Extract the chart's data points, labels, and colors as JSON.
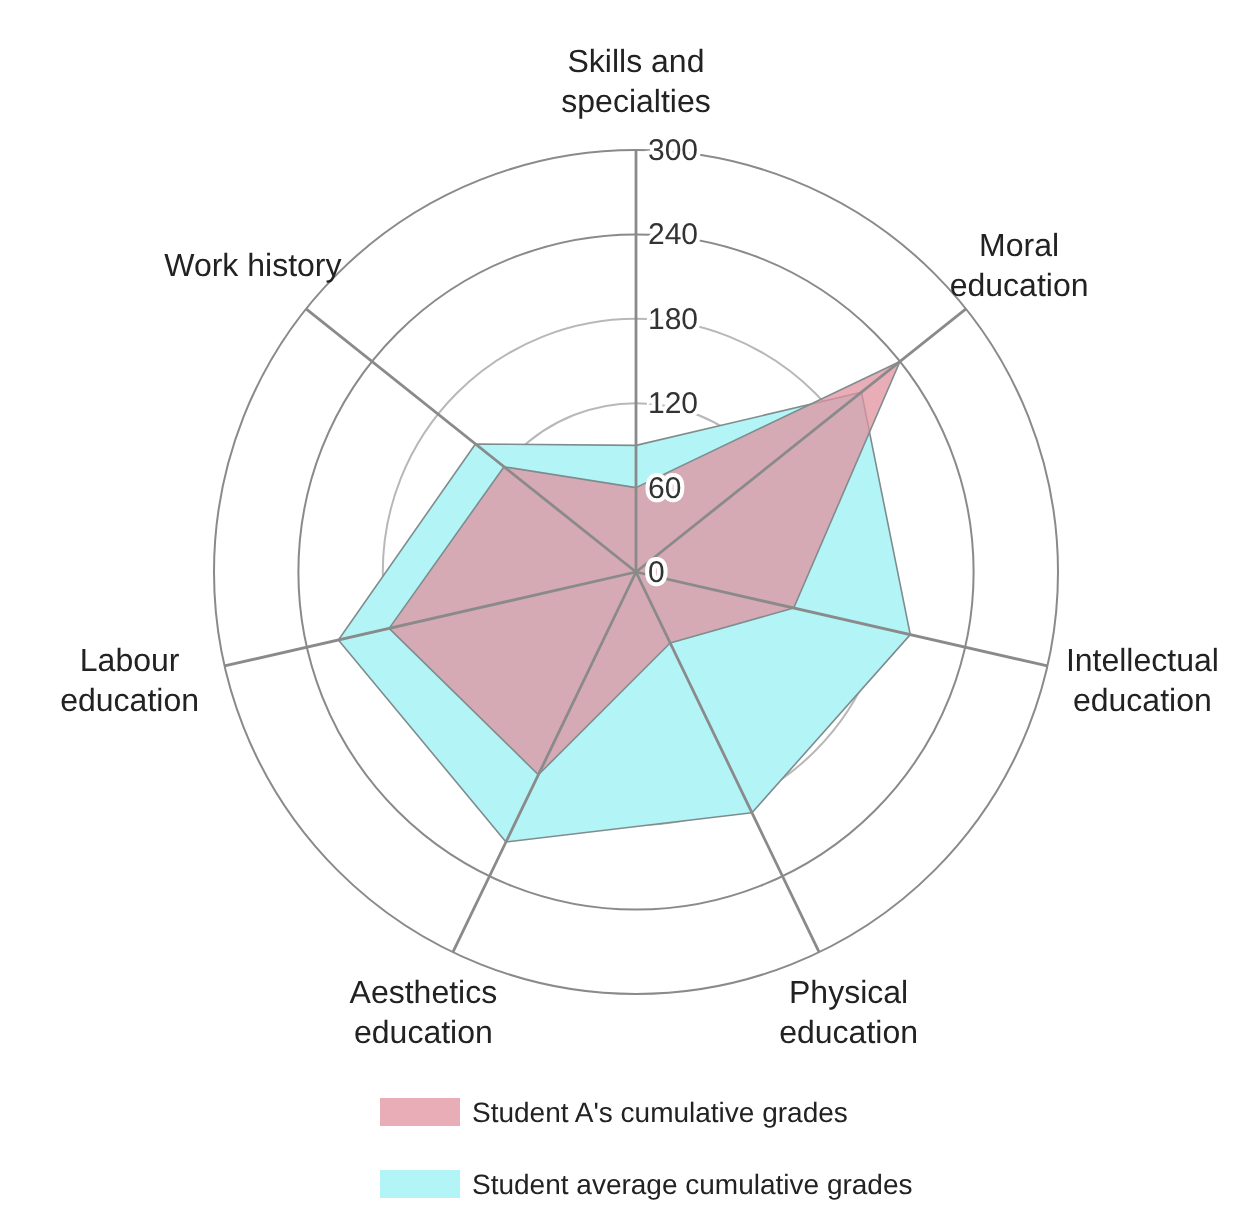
{
  "chart_data": {
    "type": "radar",
    "categories": [
      "Skills and specialties",
      "Moral education",
      "Intellectual education",
      "Physical education",
      "Aesthetics education",
      "Labour education",
      "Work history"
    ],
    "series": [
      {
        "name": "Student average cumulative grades",
        "color": "#b3f4f7",
        "values": [
          90,
          205,
          200,
          190,
          213,
          217,
          146
        ]
      },
      {
        "name": "Student A's cumulative grades",
        "color": "#e0919e",
        "values": [
          60,
          240,
          115,
          56,
          160,
          180,
          120
        ]
      }
    ],
    "ylim": [
      0,
      300
    ],
    "yticks": [
      0,
      60,
      120,
      180,
      240,
      300
    ],
    "grid": true,
    "legend": "bottom"
  }
}
